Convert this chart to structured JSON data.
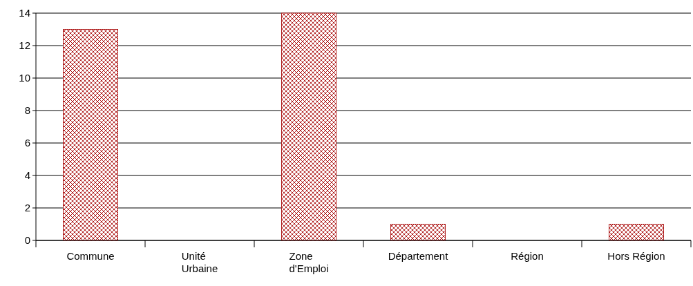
{
  "chart_data": {
    "type": "bar",
    "categories": [
      "Commune",
      "Unité Urbaine",
      "Zone d'Emploi",
      "Département",
      "Région",
      "Hors Région"
    ],
    "values": [
      13,
      0,
      14,
      1,
      0,
      1
    ],
    "color": "#b02020",
    "ylim": [
      0,
      14
    ],
    "yticks": [
      0,
      2,
      4,
      6,
      8,
      10,
      12,
      14
    ],
    "grid": "y"
  }
}
